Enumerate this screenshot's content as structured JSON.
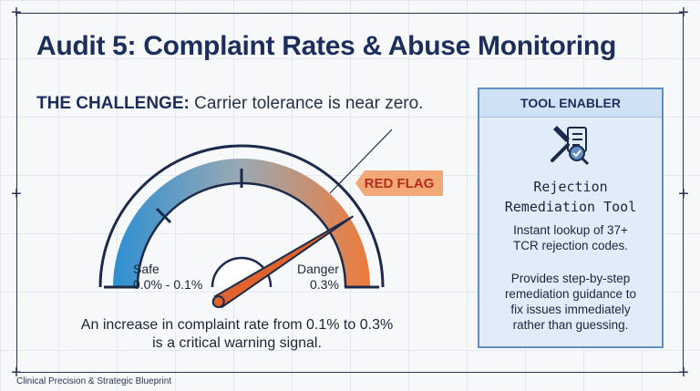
{
  "title": "Audit 5: Complaint Rates & Abuse Monitoring",
  "challenge": {
    "heading": "THE CHALLENGE:",
    "text": "Carrier tolerance is near zero."
  },
  "gauge": {
    "flag_label": "RED FLAG",
    "safe_label": "Safe",
    "safe_range": "0.0% - 0.1%",
    "danger_label": "Danger",
    "danger_value": "0.3%",
    "needle_fraction": 0.82,
    "colors": {
      "safe": "#2f8fd1",
      "mid": "#9aa9b3",
      "danger": "#ee7a3a",
      "needle": "#e0622d",
      "outline": "#1b2a4a"
    }
  },
  "caption": {
    "line1": "An increase in complaint rate from 0.1% to 0.3%",
    "line2": "is a critical warning signal."
  },
  "tool_panel": {
    "header": "TOOL ENABLER",
    "icon": "wrench-checklist-icon",
    "name_line1": "Rejection",
    "name_line2": "Remediation Tool",
    "desc1_line1": "Instant lookup of 37+",
    "desc1_line2": "TCR rejection codes.",
    "desc2_line1": "Provides step-by-step",
    "desc2_line2": "remediation guidance to",
    "desc2_line3": "fix issues immediately",
    "desc2_line4": "rather than guessing."
  },
  "footer": "Clinical Precision & Strategic Blueprint"
}
